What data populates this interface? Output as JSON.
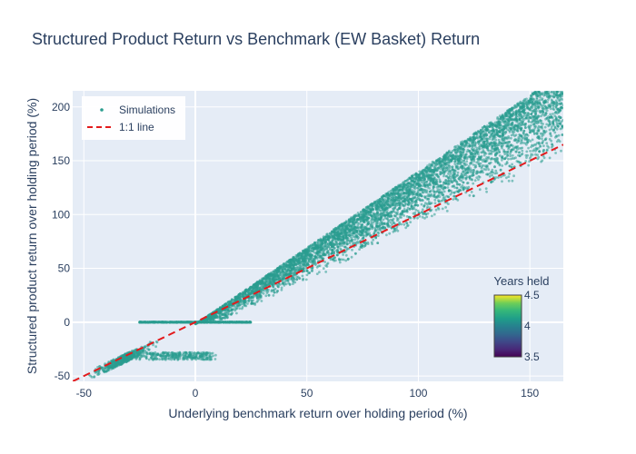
{
  "chart_data": {
    "type": "scatter",
    "title": "Structured Product Return vs Benchmark (EW Basket) Return",
    "xlabel": "Underlying benchmark return over holding period (%)",
    "ylabel": "Structured product return over holding period (%)",
    "xlim": [
      -55,
      165
    ],
    "ylim": [
      -55,
      215
    ],
    "xticks": [
      -50,
      0,
      50,
      100,
      150
    ],
    "yticks": [
      -50,
      0,
      50,
      100,
      150,
      200
    ],
    "grid": true,
    "legend_position": "top-left",
    "series": [
      {
        "name": "Simulations",
        "kind": "markers",
        "color": "#2a9d8f",
        "clusters": [
          {
            "region": "downside barrier breached",
            "x_range": [
              -55,
              -10
            ],
            "y_relation": "y ≈ x",
            "approx_points": 500
          },
          {
            "region": "loss capped near -28%",
            "x_range": [
              -30,
              10
            ],
            "y_range": [
              -35,
              -25
            ],
            "approx_points": 300
          },
          {
            "region": "capital protected (flat 0)",
            "x_range": [
              -25,
              25
            ],
            "y_value": 0,
            "approx_points": 700
          },
          {
            "region": "participation upside",
            "x_range": [
              0,
              165
            ],
            "y_relation": "y ≈ 1.4·x (upper envelope) down to y ≈ x",
            "approx_points": 6000
          }
        ]
      },
      {
        "name": "1:1 line",
        "kind": "line",
        "color": "#e31a1c",
        "dash": "dashed",
        "points": [
          [
            -55,
            -55
          ],
          [
            165,
            165
          ]
        ]
      }
    ],
    "colorbar": {
      "title": "Years held",
      "min": 3.5,
      "max": 4.5,
      "ticks": [
        "4.5",
        "4",
        "3.5"
      ],
      "colorscale": "viridis"
    }
  }
}
